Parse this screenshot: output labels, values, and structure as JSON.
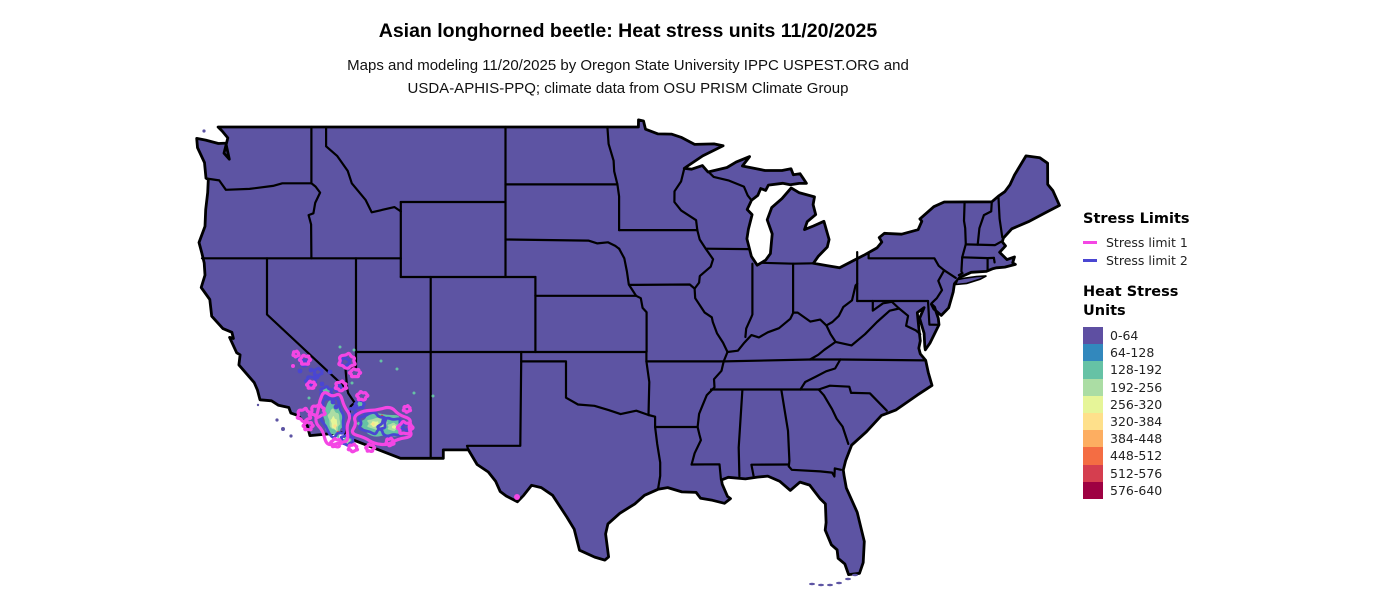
{
  "header": {
    "title": "Asian longhorned beetle: Heat stress units 11/20/2025",
    "subtitle_line1": "Maps and modeling 11/20/2025 by Oregon State University IPPC USPEST.ORG and",
    "subtitle_line2": "USDA-APHIS-PPQ; climate data from OSU PRISM Climate Group"
  },
  "legend": {
    "stress_limits": {
      "title": "Stress Limits",
      "items": [
        {
          "label": "Stress limit 1",
          "color": "#f446e4"
        },
        {
          "label": "Stress limit 2",
          "color": "#4a46d2"
        }
      ]
    },
    "heat_stress": {
      "title": "Heat Stress Units",
      "bins": [
        {
          "label": "0-64",
          "color": "#5e4fa2"
        },
        {
          "label": "64-128",
          "color": "#3288bd"
        },
        {
          "label": "128-192",
          "color": "#66c2a5"
        },
        {
          "label": "192-256",
          "color": "#abdda4"
        },
        {
          "label": "256-320",
          "color": "#e6f598"
        },
        {
          "label": "320-384",
          "color": "#fee08b"
        },
        {
          "label": "384-448",
          "color": "#fdae61"
        },
        {
          "label": "448-512",
          "color": "#f46d43"
        },
        {
          "label": "512-576",
          "color": "#d53e4f"
        },
        {
          "label": "576-640",
          "color": "#9e0142"
        }
      ]
    }
  },
  "map": {
    "region": "Contiguous United States",
    "base_bin_label": "0-64",
    "base_color": "#5d54a3",
    "state_border_color": "#000000",
    "background_color": "#ffffff"
  }
}
